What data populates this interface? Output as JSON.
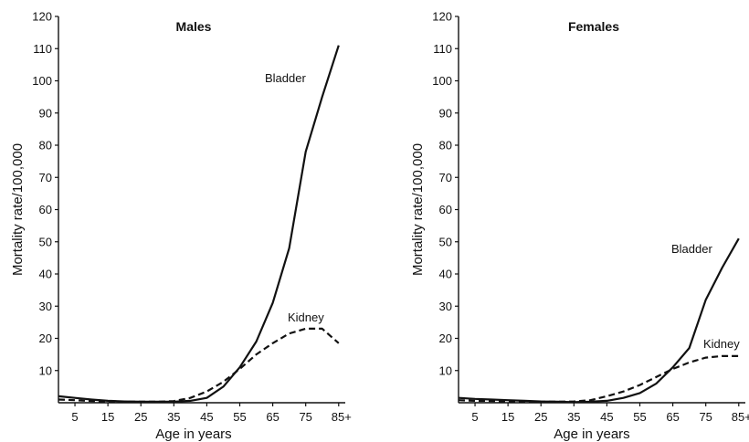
{
  "chart_data": [
    {
      "type": "line",
      "title": "Males",
      "xlabel": "Age in years",
      "ylabel": "Mortality rate/100,000",
      "x_ticks": [
        "5",
        "15",
        "25",
        "35",
        "45",
        "55",
        "65",
        "75",
        "85+"
      ],
      "y_ticks": [
        10,
        20,
        30,
        40,
        50,
        60,
        70,
        80,
        90,
        100,
        110,
        120
      ],
      "xlim": [
        0,
        87
      ],
      "ylim": [
        0,
        120
      ],
      "grid": false,
      "series": [
        {
          "name": "Bladder",
          "style": "solid",
          "x": [
            0,
            5,
            10,
            15,
            20,
            25,
            30,
            35,
            40,
            45,
            50,
            55,
            60,
            65,
            70,
            75,
            80,
            85
          ],
          "y": [
            2,
            1.5,
            1,
            0.6,
            0.4,
            0.3,
            0.3,
            0.3,
            0.6,
            1.5,
            5,
            11,
            19,
            31,
            48,
            78,
            95,
            111
          ]
        },
        {
          "name": "Kidney",
          "style": "dashed",
          "x": [
            0,
            5,
            10,
            15,
            20,
            25,
            30,
            35,
            40,
            45,
            50,
            55,
            60,
            65,
            70,
            75,
            80,
            85
          ],
          "y": [
            1,
            0.8,
            0.5,
            0.4,
            0.3,
            0.3,
            0.3,
            0.5,
            1.5,
            3.5,
            6.5,
            10.5,
            15,
            18.5,
            21.5,
            23,
            23,
            18.5
          ]
        }
      ]
    },
    {
      "type": "line",
      "title": "Females",
      "xlabel": "Age in years",
      "ylabel": "Mortality rate/100,000",
      "x_ticks": [
        "5",
        "15",
        "25",
        "35",
        "45",
        "55",
        "65",
        "75",
        "85+"
      ],
      "y_ticks": [
        10,
        20,
        30,
        40,
        50,
        60,
        70,
        80,
        90,
        100,
        110,
        120
      ],
      "xlim": [
        0,
        87
      ],
      "ylim": [
        0,
        120
      ],
      "grid": false,
      "series": [
        {
          "name": "Bladder",
          "style": "solid",
          "x": [
            0,
            5,
            10,
            15,
            20,
            25,
            30,
            35,
            40,
            45,
            50,
            55,
            60,
            65,
            70,
            75,
            80,
            85
          ],
          "y": [
            1.5,
            1.2,
            1,
            0.8,
            0.6,
            0.4,
            0.3,
            0.2,
            0.3,
            0.6,
            1.5,
            3,
            6,
            11,
            17,
            32,
            42,
            51
          ]
        },
        {
          "name": "Kidney",
          "style": "dashed",
          "x": [
            0,
            5,
            10,
            15,
            20,
            25,
            30,
            35,
            40,
            45,
            50,
            55,
            60,
            65,
            70,
            75,
            80,
            85
          ],
          "y": [
            0.8,
            0.6,
            0.5,
            0.4,
            0.3,
            0.3,
            0.3,
            0.4,
            0.8,
            2,
            3.5,
            5.5,
            8,
            10.5,
            12.5,
            14,
            14.5,
            14.5
          ]
        }
      ]
    }
  ]
}
